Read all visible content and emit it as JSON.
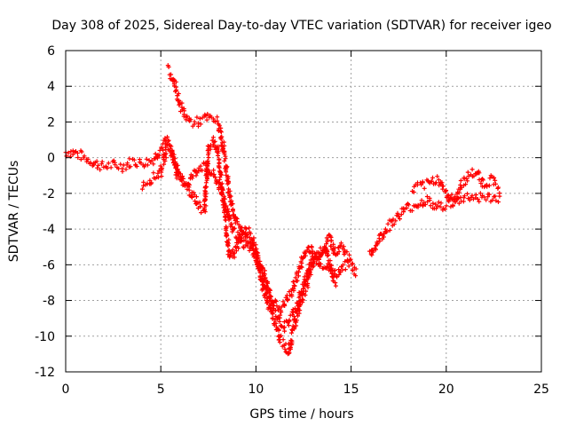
{
  "chart_data": {
    "type": "scatter",
    "title": "Day 308 of 2025, Sidereal Day-to-day VTEC variation (SDTVAR) for receiver igeo",
    "xlabel": "GPS time / hours",
    "ylabel": "SDTVAR / TECUs",
    "xlim": [
      0,
      25
    ],
    "ylim": [
      -12,
      6
    ],
    "xticks": [
      0,
      5,
      10,
      15,
      20,
      25
    ],
    "yticks": [
      -12,
      -10,
      -8,
      -6,
      -4,
      -2,
      0,
      2,
      4,
      6
    ],
    "grid": true,
    "marker": "+",
    "color": "#ff0000",
    "series": [
      {
        "name": "igeo",
        "bands": [
          {
            "x": [
              0.0,
              0.5,
              1.0,
              1.5,
              2.0,
              2.5,
              3.0,
              3.5,
              4.0,
              4.5,
              5.0,
              5.3,
              5.6,
              6.0,
              6.3,
              6.6,
              6.9,
              7.1,
              7.3,
              7.5,
              7.8,
              8.0,
              8.3,
              8.6,
              8.8,
              9.0,
              9.3,
              9.5,
              9.8,
              10.0,
              10.3,
              10.6,
              10.9,
              11.1,
              11.3,
              11.5,
              11.7,
              11.9,
              12.1,
              12.4,
              12.7,
              13.0,
              13.3,
              13.6,
              13.9,
              14.2,
              14.5,
              14.8,
              15.0,
              15.3
            ],
            "y": [
              0.3,
              0.3,
              0.0,
              -0.3,
              -0.5,
              -0.4,
              -0.5,
              -0.2,
              -0.3,
              -0.2,
              0.5,
              1.0,
              0.2,
              -1.0,
              -1.5,
              -2.0,
              -2.5,
              -2.8,
              -3.0,
              0.5,
              1.0,
              0.3,
              -2.5,
              -5.5,
              -5.5,
              -5.0,
              -4.0,
              -4.5,
              -5.0,
              -5.5,
              -7.0,
              -8.0,
              -9.0,
              -9.5,
              -10.3,
              -10.5,
              -11.0,
              -10.0,
              -9.0,
              -8.0,
              -7.0,
              -6.0,
              -5.5,
              -5.0,
              -4.5,
              -5.5,
              -5.0,
              -5.5,
              -6.0,
              -6.5
            ]
          },
          {
            "x": [
              4.0,
              4.5,
              5.0,
              5.3,
              5.6,
              5.9,
              6.1,
              6.4,
              6.7,
              7.0,
              7.3,
              7.6,
              7.9,
              8.2,
              8.5,
              8.8,
              9.1,
              9.4,
              9.7,
              10.0,
              10.3,
              10.6,
              10.9,
              11.2,
              11.5,
              11.8,
              12.1,
              12.4,
              12.7,
              13.0,
              13.3,
              13.6,
              13.9,
              14.2
            ],
            "y": [
              -1.5,
              -1.2,
              -0.8,
              0.5,
              0.3,
              -1.0,
              -1.2,
              -1.5,
              -1.0,
              -0.5,
              -0.5,
              -0.8,
              -1.2,
              -2.0,
              -3.0,
              -4.0,
              -4.5,
              -5.0,
              -5.0,
              -5.5,
              -6.5,
              -7.5,
              -8.5,
              -9.0,
              -9.5,
              -9.0,
              -8.5,
              -7.5,
              -6.5,
              -5.5,
              -5.5,
              -5.0,
              -6.0,
              -7.0
            ]
          },
          {
            "x": [
              5.4,
              5.7,
              6.0,
              6.3,
              6.6,
              7.0,
              7.3,
              7.6,
              8.0,
              8.3,
              8.6,
              8.9,
              9.2,
              9.5,
              9.8,
              10.1,
              10.4,
              10.7,
              11.0,
              11.3,
              11.6,
              11.9,
              12.2,
              12.5,
              12.8,
              13.1,
              13.4,
              13.7,
              14.0,
              14.3,
              14.6,
              14.9
            ],
            "y": [
              4.9,
              4.3,
              3.0,
              2.3,
              2.0,
              2.0,
              2.2,
              2.2,
              2.0,
              0.5,
              -2.0,
              -3.5,
              -4.0,
              -4.0,
              -4.5,
              -5.5,
              -6.5,
              -7.5,
              -8.2,
              -8.5,
              -8.0,
              -7.5,
              -6.5,
              -5.5,
              -5.0,
              -5.5,
              -6.0,
              -6.0,
              -6.5,
              -6.5,
              -6.0,
              -6.0
            ]
          },
          {
            "x": [
              16.0,
              16.5,
              17.0,
              17.5,
              18.0,
              18.5,
              19.0,
              19.5,
              20.0,
              20.5,
              21.0,
              21.5,
              22.0,
              22.5,
              22.9
            ],
            "y": [
              -5.5,
              -4.5,
              -3.8,
              -3.2,
              -2.8,
              -2.6,
              -2.4,
              -2.8,
              -2.6,
              -2.5,
              -2.2,
              -2.2,
              -2.2,
              -2.3,
              -2.2
            ]
          },
          {
            "x": [
              18.2,
              18.6,
              19.0,
              19.4,
              19.7,
              20.0,
              20.4,
              20.8,
              21.2,
              21.6,
              22.0,
              22.4,
              22.8
            ],
            "y": [
              -1.8,
              -1.6,
              -1.5,
              -1.2,
              -1.3,
              -2.0,
              -2.5,
              -1.5,
              -1.0,
              -0.8,
              -1.5,
              -1.2,
              -1.5
            ]
          }
        ]
      }
    ]
  }
}
